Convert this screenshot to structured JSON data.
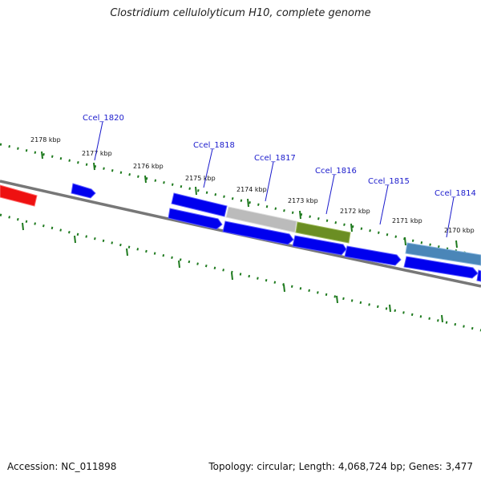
{
  "title": "Clostridium cellulolyticum H10, complete genome",
  "footer": {
    "accession": "Accession: NC_011898",
    "info": "Topology: circular; Length: 4,068,724 bp; Genes: 3,477"
  },
  "scale_labels": [
    "2178 kbp",
    "2177 kbp",
    "2176 kbp",
    "2175 kbp",
    "2174 kbp",
    "2173 kbp",
    "2172 kbp",
    "2171 kbp",
    "2170 kbp"
  ],
  "gene_labels": [
    "Ccel_1820",
    "Ccel_1818",
    "Ccel_1817",
    "Ccel_1816",
    "Ccel_1815",
    "Ccel_1814"
  ],
  "colors": {
    "backbone": "#777777",
    "tick": "#1e7a1e",
    "cds": "#0000ee",
    "label": "#1a1acc",
    "rna": "#ee1111",
    "pseudo": "#bbbbbb",
    "olive": "#6b8e23",
    "steelblue": "#4a86b8"
  }
}
